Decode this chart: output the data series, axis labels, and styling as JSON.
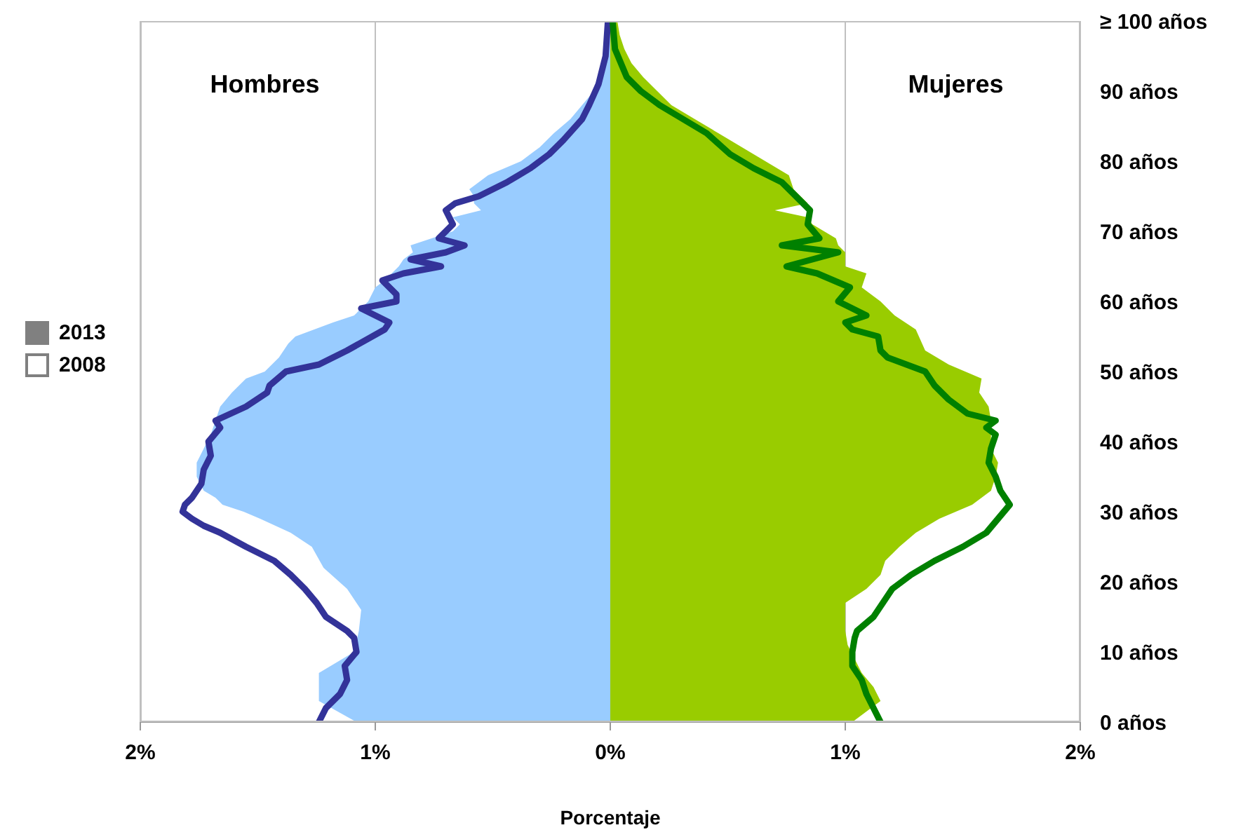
{
  "chart_data": {
    "type": "area",
    "orientation": "horizontal",
    "xlabel": "Porcentaje",
    "annotations": [
      "Hombres",
      "Mujeres",
      "2013",
      "2008"
    ],
    "xlim": [
      -2,
      2
    ],
    "xticks": [
      {
        "value": -2,
        "label": "2%"
      },
      {
        "value": -1,
        "label": "1%"
      },
      {
        "value": 0,
        "label": "0%"
      },
      {
        "value": 1,
        "label": "1%"
      },
      {
        "value": 2,
        "label": "2%"
      }
    ],
    "ylim": [
      0,
      100
    ],
    "yticks": [
      {
        "value": 0,
        "label": "0 años"
      },
      {
        "value": 10,
        "label": "10 años"
      },
      {
        "value": 20,
        "label": "20 años"
      },
      {
        "value": 30,
        "label": "30 años"
      },
      {
        "value": 40,
        "label": "40 años"
      },
      {
        "value": 50,
        "label": "50 años"
      },
      {
        "value": 60,
        "label": "60 años"
      },
      {
        "value": 70,
        "label": "70 años"
      },
      {
        "value": 80,
        "label": "80 años"
      },
      {
        "value": 90,
        "label": "90 años"
      },
      {
        "value": 100,
        "label": "≥ 100 años"
      }
    ],
    "grid": "x",
    "series": [
      {
        "color": "#99ccff",
        "x": [
          0,
          3,
          7,
          10,
          13,
          16,
          19,
          22,
          25,
          27,
          29,
          30,
          31,
          32,
          33,
          35,
          37,
          39,
          41,
          43,
          45,
          47,
          49,
          50,
          52,
          54,
          55,
          57,
          58,
          60,
          62,
          63,
          65,
          66,
          67,
          68,
          69,
          70,
          71,
          72,
          73,
          74,
          75,
          76,
          78,
          80,
          82,
          84,
          86,
          88,
          90,
          92,
          94,
          96,
          98,
          100
        ],
        "values": [
          -1.08,
          -1.24,
          -1.24,
          -1.09,
          -1.07,
          -1.06,
          -1.12,
          -1.22,
          -1.27,
          -1.36,
          -1.49,
          -1.56,
          -1.65,
          -1.68,
          -1.73,
          -1.76,
          -1.76,
          -1.73,
          -1.7,
          -1.68,
          -1.66,
          -1.61,
          -1.55,
          -1.47,
          -1.41,
          -1.37,
          -1.34,
          -1.18,
          -1.09,
          -1.03,
          -1.0,
          -0.96,
          -0.9,
          -0.88,
          -0.84,
          -0.85,
          -0.76,
          -0.67,
          -0.64,
          -0.67,
          -0.55,
          -0.58,
          -0.58,
          -0.6,
          -0.52,
          -0.38,
          -0.3,
          -0.24,
          -0.17,
          -0.12,
          -0.07,
          -0.04,
          -0.03,
          -0.02,
          -0.01,
          -0.01
        ]
      },
      {
        "color": "#99cc00",
        "x": [
          0,
          3,
          5,
          7,
          9,
          11,
          13,
          15,
          17,
          19,
          21,
          23,
          25,
          27,
          29,
          31,
          33,
          35,
          37,
          39,
          41,
          43,
          45,
          47,
          49,
          51,
          53,
          56,
          58,
          60,
          62,
          64,
          65,
          67,
          68,
          69,
          71,
          72,
          73,
          74,
          76,
          78,
          80,
          82,
          84,
          86,
          88,
          90,
          92,
          94,
          96,
          98,
          100
        ],
        "values": [
          1.03,
          1.15,
          1.12,
          1.07,
          1.04,
          1.01,
          1.0,
          1.0,
          1.0,
          1.09,
          1.15,
          1.17,
          1.23,
          1.3,
          1.4,
          1.54,
          1.62,
          1.64,
          1.65,
          1.62,
          1.62,
          1.62,
          1.61,
          1.57,
          1.58,
          1.44,
          1.34,
          1.3,
          1.21,
          1.15,
          1.07,
          1.09,
          1.0,
          1.0,
          0.97,
          0.96,
          0.86,
          0.84,
          0.7,
          0.84,
          0.78,
          0.76,
          0.66,
          0.56,
          0.46,
          0.36,
          0.26,
          0.2,
          0.14,
          0.09,
          0.06,
          0.04,
          0.03
        ]
      },
      {
        "type": "line",
        "color": "#333399",
        "x": [
          0,
          2,
          4,
          6,
          8,
          10,
          12,
          13,
          15,
          17,
          19,
          21,
          23,
          25,
          27,
          28,
          29,
          30,
          31,
          32,
          34,
          36,
          38,
          40,
          42,
          43,
          45,
          47,
          48,
          50,
          51,
          53,
          56,
          57,
          59,
          60,
          61,
          63,
          64,
          65,
          66,
          67,
          68,
          69,
          71,
          73,
          74,
          75,
          77,
          79,
          81,
          83,
          86,
          88,
          91,
          95,
          100
        ],
        "values": [
          -1.24,
          -1.21,
          -1.15,
          -1.12,
          -1.13,
          -1.08,
          -1.09,
          -1.12,
          -1.21,
          -1.25,
          -1.3,
          -1.36,
          -1.43,
          -1.55,
          -1.66,
          -1.73,
          -1.78,
          -1.82,
          -1.81,
          -1.78,
          -1.74,
          -1.73,
          -1.7,
          -1.71,
          -1.66,
          -1.68,
          -1.55,
          -1.46,
          -1.45,
          -1.38,
          -1.24,
          -1.12,
          -0.96,
          -0.94,
          -1.06,
          -0.91,
          -0.91,
          -0.97,
          -0.88,
          -0.72,
          -0.85,
          -0.7,
          -0.62,
          -0.73,
          -0.67,
          -0.7,
          -0.66,
          -0.56,
          -0.44,
          -0.34,
          -0.26,
          -0.2,
          -0.12,
          -0.09,
          -0.05,
          -0.02,
          -0.01
        ]
      },
      {
        "type": "line",
        "color": "#008000",
        "x": [
          0,
          2,
          4,
          6,
          8,
          10,
          12,
          13,
          15,
          17,
          19,
          21,
          23,
          25,
          27,
          29,
          31,
          33,
          35,
          37,
          39,
          41,
          42,
          43,
          44,
          46,
          48,
          50,
          52,
          53,
          55,
          56,
          57,
          58,
          60,
          62,
          64,
          65,
          67,
          68,
          69,
          71,
          73,
          75,
          77,
          79,
          81,
          84,
          86,
          88,
          90,
          92,
          96,
          100
        ],
        "values": [
          1.15,
          1.12,
          1.09,
          1.07,
          1.03,
          1.03,
          1.04,
          1.05,
          1.12,
          1.16,
          1.2,
          1.28,
          1.38,
          1.5,
          1.6,
          1.65,
          1.7,
          1.66,
          1.64,
          1.61,
          1.62,
          1.64,
          1.6,
          1.64,
          1.52,
          1.44,
          1.38,
          1.34,
          1.18,
          1.15,
          1.14,
          1.03,
          1.0,
          1.09,
          0.97,
          1.02,
          0.88,
          0.75,
          0.97,
          0.73,
          0.89,
          0.84,
          0.85,
          0.79,
          0.73,
          0.61,
          0.51,
          0.41,
          0.31,
          0.21,
          0.13,
          0.07,
          0.02,
          0.01
        ]
      }
    ]
  }
}
